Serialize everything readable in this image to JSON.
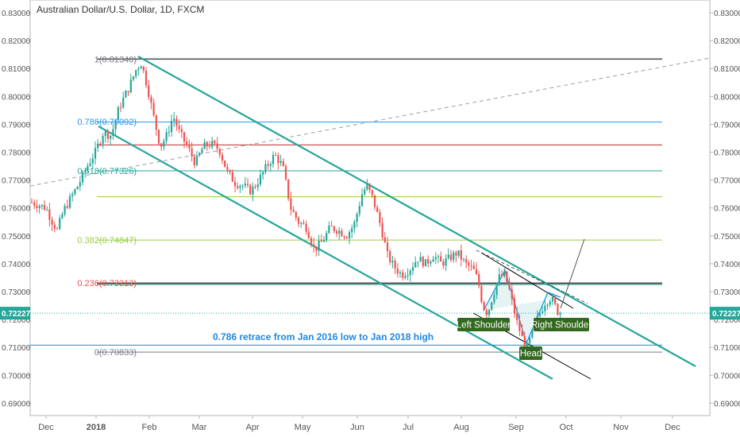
{
  "chart_data": {
    "type": "candlestick",
    "title": "Australian Dollar/U.S. Dollar, 1D, FXCM",
    "current_price": "0.72227",
    "y_ticks": [
      "0.83000",
      "0.82000",
      "0.81000",
      "0.80000",
      "0.79000",
      "0.78000",
      "0.77000",
      "0.76000",
      "0.75000",
      "0.74000",
      "0.73000",
      "0.72000",
      "0.71000",
      "0.70000",
      "0.69000"
    ],
    "ylim": [
      0.6855,
      0.834
    ],
    "x_ticks": [
      {
        "label": "Dec",
        "x": 58,
        "bold": false
      },
      {
        "label": "2018",
        "x": 121,
        "bold": true
      },
      {
        "label": "Feb",
        "x": 188,
        "bold": false
      },
      {
        "label": "Mar",
        "x": 251,
        "bold": false
      },
      {
        "label": "Apr",
        "x": 318,
        "bold": false
      },
      {
        "label": "May",
        "x": 381,
        "bold": false
      },
      {
        "label": "Jun",
        "x": 450,
        "bold": false
      },
      {
        "label": "Jul",
        "x": 514,
        "bold": false
      },
      {
        "label": "Aug",
        "x": 581,
        "bold": false
      },
      {
        "label": "Sep",
        "x": 650,
        "bold": false
      },
      {
        "label": "Oct",
        "x": 713,
        "bold": false
      },
      {
        "label": "Nov",
        "x": 782,
        "bold": false
      },
      {
        "label": "Dec",
        "x": 847,
        "bold": false
      }
    ],
    "fib_levels": [
      {
        "label": "1(0.81340)",
        "value": 0.8134,
        "color": "#787b86"
      },
      {
        "label": "0.786(0.79092)",
        "value": 0.79092,
        "color": "#2196f3"
      },
      {
        "label": "0.618(0.77326)",
        "value": 0.77326,
        "color": "#26a69a"
      },
      {
        "label": "0.382(0.74847)",
        "value": 0.74847,
        "color": "#9ccc3f"
      },
      {
        "label": "0.236(0.73313)",
        "value": 0.73313,
        "color": "#ef5350"
      },
      {
        "label": "0(0.70833)",
        "value": 0.70833,
        "color": "#787b86"
      }
    ],
    "horizontal_lines": [
      {
        "value": 0.8134,
        "color": "#555555"
      },
      {
        "value": 0.7908,
        "color": "#2196f3"
      },
      {
        "value": 0.7826,
        "color": "#c62828"
      },
      {
        "value": 0.7733,
        "color": "#26a69a"
      },
      {
        "value": 0.764,
        "color": "#9ccc3f"
      },
      {
        "value": 0.7485,
        "color": "#9ccc3f"
      },
      {
        "value": 0.733,
        "color": "#333333"
      },
      {
        "value": 0.7325,
        "color": "#26a69a"
      },
      {
        "value": 0.7108,
        "color": "#1e88e5"
      },
      {
        "value": 0.7083,
        "color": "#787b86"
      }
    ],
    "annotations": {
      "retrace_text": "0.786 retrace from Jan 2016 low to Jan 2018 high",
      "left_shoulder": "Left Shoulder",
      "head": "Head",
      "right_shoulder": "Right Shoulder"
    },
    "colors": {
      "up": "#26a69a",
      "down": "#ef5350",
      "channel": "#26a69a",
      "price_tag": "#26a69a"
    }
  }
}
